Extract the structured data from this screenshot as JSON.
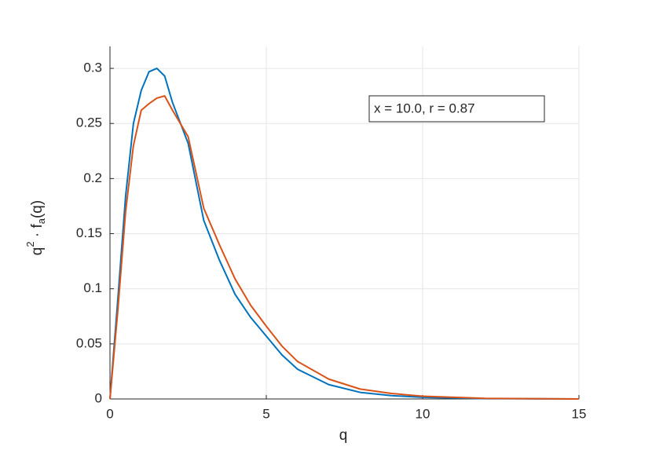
{
  "chart_data": {
    "type": "line",
    "xlabel": "q",
    "ylabel_parts": [
      "q",
      "2",
      " · f",
      "a",
      "(q)"
    ],
    "annotation": "x = 10.0, r = 0.87",
    "x": [
      0,
      0.25,
      0.5,
      0.75,
      1,
      1.25,
      1.5,
      1.75,
      2,
      2.5,
      3,
      3.5,
      4,
      4.5,
      5,
      5.5,
      6,
      7,
      8,
      9,
      10,
      12,
      15
    ],
    "series": [
      {
        "color": "#0072BD",
        "values": [
          0,
          0.09,
          0.184,
          0.25,
          0.28,
          0.297,
          0.3,
          0.293,
          0.269,
          0.232,
          0.162,
          0.126,
          0.095,
          0.074,
          0.057,
          0.04,
          0.027,
          0.013,
          0.006,
          0.003,
          0.0015,
          0.0003,
          0
        ]
      },
      {
        "color": "#D95319",
        "values": [
          0,
          0.08,
          0.17,
          0.23,
          0.262,
          0.268,
          0.273,
          0.275,
          0.262,
          0.238,
          0.173,
          0.14,
          0.109,
          0.085,
          0.066,
          0.048,
          0.034,
          0.018,
          0.009,
          0.005,
          0.0025,
          0.0005,
          0
        ]
      }
    ],
    "xlim": [
      0,
      15
    ],
    "xticks": [
      0,
      5,
      10,
      15
    ],
    "ylim": [
      0,
      0.32
    ],
    "yticks": [
      0,
      0.05,
      0.1,
      0.15,
      0.2,
      0.25,
      0.3
    ],
    "grid": true
  }
}
